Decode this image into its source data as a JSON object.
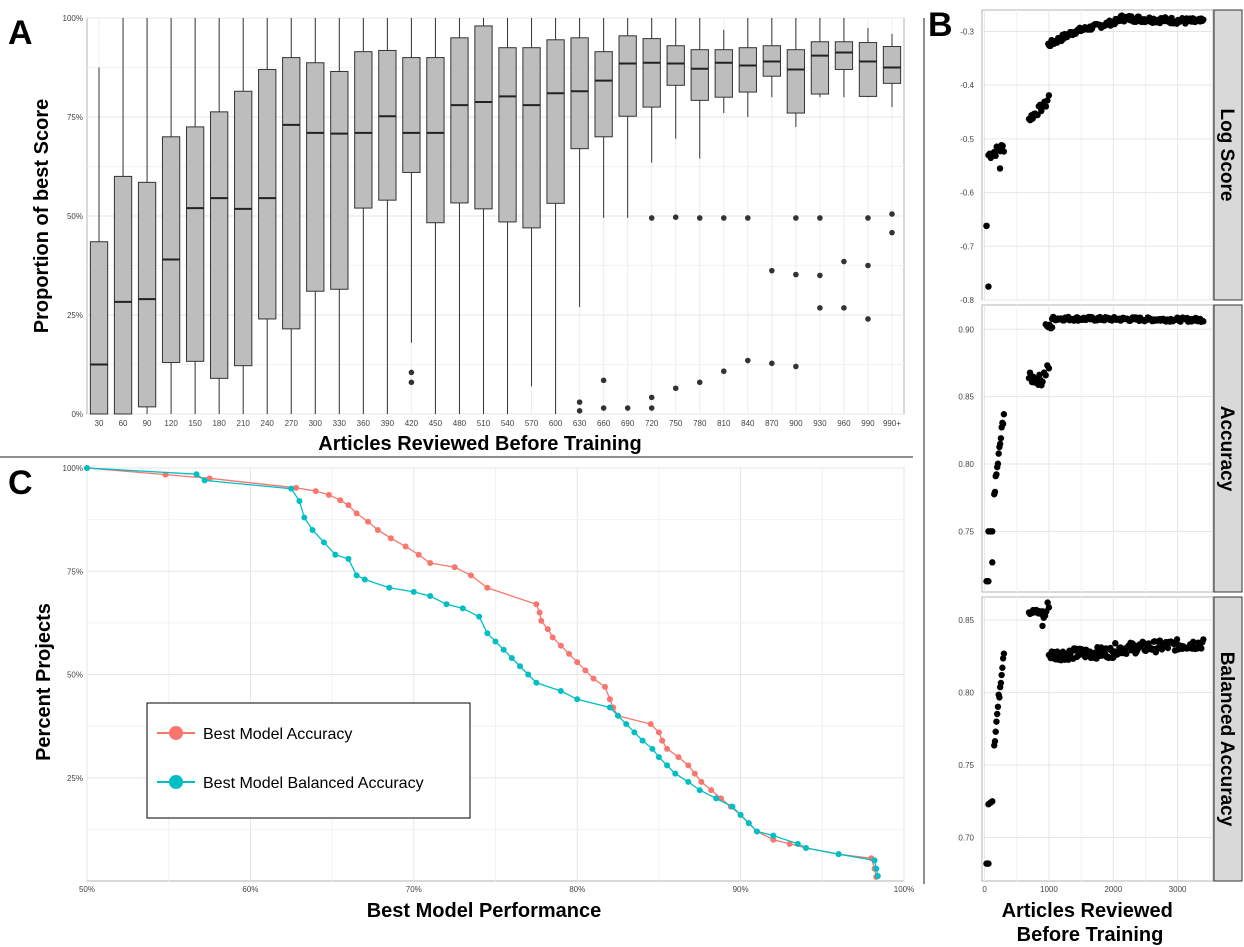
{
  "panel_letters": {
    "a": "A",
    "b": "B",
    "c": "C"
  },
  "chart_data": [
    {
      "id": "A",
      "type": "box",
      "xlabel": "Articles Reviewed Before Training",
      "ylabel": "Proportion of best Score",
      "ylim": [
        0,
        1
      ],
      "yticks": [
        "0%",
        "25%",
        "50%",
        "75%",
        "100%"
      ],
      "grid": true,
      "categories": [
        "30",
        "60",
        "90",
        "120",
        "150",
        "180",
        "210",
        "240",
        "270",
        "300",
        "330",
        "360",
        "390",
        "420",
        "450",
        "480",
        "510",
        "540",
        "570",
        "600",
        "630",
        "660",
        "690",
        "720",
        "750",
        "780",
        "810",
        "840",
        "870",
        "900",
        "930",
        "960",
        "990",
        "990+"
      ],
      "boxes": [
        {
          "min": 0.0,
          "q1": 0.0,
          "median": 0.125,
          "q3": 0.435,
          "max": 0.875
        },
        {
          "min": 0.0,
          "q1": 0.0,
          "median": 0.283,
          "q3": 0.6,
          "max": 1.0
        },
        {
          "min": 0.0,
          "q1": 0.018,
          "median": 0.29,
          "q3": 0.585,
          "max": 1.0
        },
        {
          "min": 0.0,
          "q1": 0.13,
          "median": 0.39,
          "q3": 0.7,
          "max": 1.0
        },
        {
          "min": 0.0,
          "q1": 0.133,
          "median": 0.52,
          "q3": 0.725,
          "max": 1.0
        },
        {
          "min": 0.0,
          "q1": 0.09,
          "median": 0.545,
          "q3": 0.763,
          "max": 1.0
        },
        {
          "min": 0.0,
          "q1": 0.122,
          "median": 0.518,
          "q3": 0.815,
          "max": 1.0
        },
        {
          "min": 0.0,
          "q1": 0.24,
          "median": 0.545,
          "q3": 0.87,
          "max": 1.0
        },
        {
          "min": 0.0,
          "q1": 0.215,
          "median": 0.73,
          "q3": 0.9,
          "max": 1.0
        },
        {
          "min": 0.0,
          "q1": 0.31,
          "median": 0.71,
          "q3": 0.887,
          "max": 1.0
        },
        {
          "min": 0.0,
          "q1": 0.315,
          "median": 0.708,
          "q3": 0.865,
          "max": 1.0
        },
        {
          "min": 0.0,
          "q1": 0.52,
          "median": 0.71,
          "q3": 0.915,
          "max": 1.0
        },
        {
          "min": 0.0,
          "q1": 0.54,
          "median": 0.752,
          "q3": 0.918,
          "max": 1.0
        },
        {
          "min": 0.18,
          "q1": 0.61,
          "median": 0.71,
          "q3": 0.9,
          "max": 1.0,
          "outliers": [
            0.105,
            0.08
          ]
        },
        {
          "min": 0.0,
          "q1": 0.483,
          "median": 0.71,
          "q3": 0.9,
          "max": 1.0
        },
        {
          "min": 0.0,
          "q1": 0.533,
          "median": 0.78,
          "q3": 0.95,
          "max": 1.0
        },
        {
          "min": 0.0,
          "q1": 0.518,
          "median": 0.788,
          "q3": 0.98,
          "max": 1.0
        },
        {
          "min": 0.0,
          "q1": 0.485,
          "median": 0.802,
          "q3": 0.925,
          "max": 1.0
        },
        {
          "min": 0.07,
          "q1": 0.47,
          "median": 0.78,
          "q3": 0.925,
          "max": 1.0
        },
        {
          "min": 0.0,
          "q1": 0.532,
          "median": 0.81,
          "q3": 0.945,
          "max": 1.0
        },
        {
          "min": 0.27,
          "q1": 0.67,
          "median": 0.815,
          "q3": 0.95,
          "max": 1.0,
          "outliers": [
            0.03,
            0.008
          ]
        },
        {
          "min": 0.495,
          "q1": 0.7,
          "median": 0.842,
          "q3": 0.915,
          "max": 1.0,
          "outliers": [
            0.085,
            0.015
          ]
        },
        {
          "min": 0.495,
          "q1": 0.752,
          "median": 0.885,
          "q3": 0.955,
          "max": 1.0,
          "outliers": [
            0.015
          ]
        },
        {
          "min": 0.635,
          "q1": 0.775,
          "median": 0.887,
          "q3": 0.948,
          "max": 1.0,
          "outliers": [
            0.495,
            0.042,
            0.015
          ]
        },
        {
          "min": 0.695,
          "q1": 0.83,
          "median": 0.885,
          "q3": 0.93,
          "max": 1.0,
          "outliers": [
            0.497,
            0.065
          ]
        },
        {
          "min": 0.645,
          "q1": 0.792,
          "median": 0.872,
          "q3": 0.92,
          "max": 1.0,
          "outliers": [
            0.495,
            0.08
          ]
        },
        {
          "min": 0.76,
          "q1": 0.8,
          "median": 0.887,
          "q3": 0.92,
          "max": 0.97,
          "outliers": [
            0.495,
            0.108
          ]
        },
        {
          "min": 0.75,
          "q1": 0.813,
          "median": 0.88,
          "q3": 0.925,
          "max": 1.0,
          "outliers": [
            0.495,
            0.135
          ]
        },
        {
          "min": 0.8,
          "q1": 0.853,
          "median": 0.89,
          "q3": 0.93,
          "max": 1.0,
          "outliers": [
            0.362,
            0.128
          ]
        },
        {
          "min": 0.725,
          "q1": 0.76,
          "median": 0.87,
          "q3": 0.92,
          "max": 1.0,
          "outliers": [
            0.495,
            0.352,
            0.12
          ]
        },
        {
          "min": 0.8,
          "q1": 0.808,
          "median": 0.905,
          "q3": 0.94,
          "max": 1.0,
          "outliers": [
            0.495,
            0.35,
            0.268
          ]
        },
        {
          "min": 0.8,
          "q1": 0.87,
          "median": 0.913,
          "q3": 0.94,
          "max": 1.0,
          "outliers": [
            0.385,
            0.268
          ]
        },
        {
          "min": 0.8,
          "q1": 0.802,
          "median": 0.89,
          "q3": 0.938,
          "max": 0.975,
          "outliers": [
            0.495,
            0.375,
            0.24
          ]
        },
        {
          "min": 0.775,
          "q1": 0.835,
          "median": 0.875,
          "q3": 0.928,
          "max": 0.96,
          "outliers": [
            0.505,
            0.458
          ]
        }
      ]
    },
    {
      "id": "B",
      "type": "scatter",
      "xlabel": "Articles Reviewed Before Training",
      "xlim": [
        -40,
        3550
      ],
      "xticks": [
        0,
        1000,
        2000,
        3000
      ],
      "grid": true,
      "facets": [
        {
          "label": "Log Score",
          "ylim": [
            -0.8,
            -0.26
          ],
          "yticks": [
            -0.8,
            -0.7,
            -0.6,
            -0.5,
            -0.4,
            -0.3
          ],
          "segments": [
            {
              "x0": 30,
              "x1": 30,
              "y0": -0.662,
              "y1": -0.662,
              "n": 3
            },
            {
              "x0": 60,
              "x1": 60,
              "y0": -0.775,
              "y1": -0.775,
              "n": 1
            },
            {
              "x0": 60,
              "x1": 300,
              "y0": -0.53,
              "y1": -0.515,
              "n": 14,
              "noise": 0.01
            },
            {
              "x0": 240,
              "x1": 240,
              "y0": -0.555,
              "y1": -0.555,
              "n": 1
            },
            {
              "x0": 690,
              "x1": 900,
              "y0": -0.463,
              "y1": -0.44,
              "n": 12,
              "noise": 0.008
            },
            {
              "x0": 930,
              "x1": 1000,
              "y0": -0.44,
              "y1": -0.42,
              "n": 4,
              "noise": 0.01
            },
            {
              "x0": 990,
              "x1": 1400,
              "y0": -0.325,
              "y1": -0.3,
              "n": 25,
              "noise": 0.006
            },
            {
              "x0": 1400,
              "x1": 2100,
              "y0": -0.3,
              "y1": -0.28,
              "n": 45,
              "noise": 0.005
            },
            {
              "x0": 2100,
              "x1": 3400,
              "y0": -0.275,
              "y1": -0.282,
              "n": 80,
              "noise": 0.006
            }
          ]
        },
        {
          "label": "Accuracy",
          "ylim": [
            0.705,
            0.918
          ],
          "yticks": [
            0.75,
            0.8,
            0.85,
            0.9
          ],
          "segments": [
            {
              "x0": 30,
              "x1": 60,
              "y0": 0.713,
              "y1": 0.713,
              "n": 3
            },
            {
              "x0": 60,
              "x1": 120,
              "y0": 0.75,
              "y1": 0.75,
              "n": 3
            },
            {
              "x0": 120,
              "x1": 120,
              "y0": 0.727,
              "y1": 0.727,
              "n": 1
            },
            {
              "x0": 150,
              "x1": 300,
              "y0": 0.778,
              "y1": 0.838,
              "n": 14,
              "noise": 0.004
            },
            {
              "x0": 690,
              "x1": 900,
              "y0": 0.864,
              "y1": 0.862,
              "n": 14,
              "noise": 0.004
            },
            {
              "x0": 900,
              "x1": 1000,
              "y0": 0.864,
              "y1": 0.873,
              "n": 5,
              "noise": 0.005
            },
            {
              "x0": 950,
              "x1": 1050,
              "y0": 0.902,
              "y1": 0.902,
              "n": 6,
              "noise": 0.002
            },
            {
              "x0": 1050,
              "x1": 3400,
              "y0": 0.908,
              "y1": 0.907,
              "n": 140,
              "noise": 0.0015
            }
          ]
        },
        {
          "label": "Balanced Accuracy",
          "ylim": [
            0.67,
            0.866
          ],
          "yticks": [
            0.7,
            0.75,
            0.8,
            0.85
          ],
          "segments": [
            {
              "x0": 30,
              "x1": 60,
              "y0": 0.682,
              "y1": 0.682,
              "n": 3
            },
            {
              "x0": 60,
              "x1": 120,
              "y0": 0.723,
              "y1": 0.725,
              "n": 4
            },
            {
              "x0": 150,
              "x1": 300,
              "y0": 0.765,
              "y1": 0.83,
              "n": 14,
              "noise": 0.004
            },
            {
              "x0": 690,
              "x1": 900,
              "y0": 0.856,
              "y1": 0.855,
              "n": 14,
              "noise": 0.002
            },
            {
              "x0": 900,
              "x1": 1000,
              "y0": 0.848,
              "y1": 0.862,
              "n": 6,
              "noise": 0.004
            },
            {
              "x0": 1000,
              "x1": 2000,
              "y0": 0.826,
              "y1": 0.828,
              "n": 70,
              "noise": 0.004
            },
            {
              "x0": 2000,
              "x1": 3400,
              "y0": 0.83,
              "y1": 0.834,
              "n": 90,
              "noise": 0.004
            }
          ]
        }
      ]
    },
    {
      "id": "C",
      "type": "line",
      "xlabel": "Best Model Performance",
      "ylabel": "Percent Projects",
      "xlim": [
        0.5,
        1.0
      ],
      "ylim": [
        0.0,
        1.0
      ],
      "xticks": [
        "50%",
        "60%",
        "70%",
        "80%",
        "90%",
        "100%"
      ],
      "yticks": [
        "25%",
        "50%",
        "75%",
        "100%"
      ],
      "legend": "bottom-left (inside)",
      "grid": true,
      "series": [
        {
          "name": "Best Model Accuracy",
          "color": "#f8766d",
          "points": [
            [
              0.5,
              1.0
            ],
            [
              0.548,
              0.984
            ],
            [
              0.575,
              0.975
            ],
            [
              0.628,
              0.952
            ],
            [
              0.64,
              0.944
            ],
            [
              0.648,
              0.935
            ],
            [
              0.655,
              0.922
            ],
            [
              0.66,
              0.91
            ],
            [
              0.665,
              0.89
            ],
            [
              0.672,
              0.87
            ],
            [
              0.678,
              0.85
            ],
            [
              0.686,
              0.83
            ],
            [
              0.695,
              0.81
            ],
            [
              0.703,
              0.79
            ],
            [
              0.71,
              0.77
            ],
            [
              0.725,
              0.76
            ],
            [
              0.735,
              0.74
            ],
            [
              0.745,
              0.71
            ],
            [
              0.775,
              0.67
            ],
            [
              0.777,
              0.65
            ],
            [
              0.778,
              0.63
            ],
            [
              0.782,
              0.61
            ],
            [
              0.785,
              0.59
            ],
            [
              0.79,
              0.57
            ],
            [
              0.795,
              0.55
            ],
            [
              0.8,
              0.53
            ],
            [
              0.805,
              0.51
            ],
            [
              0.81,
              0.49
            ],
            [
              0.817,
              0.47
            ],
            [
              0.82,
              0.44
            ],
            [
              0.822,
              0.42
            ],
            [
              0.825,
              0.4
            ],
            [
              0.845,
              0.38
            ],
            [
              0.85,
              0.36
            ],
            [
              0.852,
              0.34
            ],
            [
              0.855,
              0.32
            ],
            [
              0.862,
              0.3
            ],
            [
              0.868,
              0.28
            ],
            [
              0.872,
              0.26
            ],
            [
              0.876,
              0.24
            ],
            [
              0.882,
              0.22
            ],
            [
              0.888,
              0.2
            ],
            [
              0.894,
              0.18
            ],
            [
              0.9,
              0.16
            ],
            [
              0.905,
              0.14
            ],
            [
              0.91,
              0.12
            ],
            [
              0.92,
              0.1
            ],
            [
              0.93,
              0.09
            ],
            [
              0.94,
              0.08
            ],
            [
              0.96,
              0.065
            ],
            [
              0.98,
              0.055
            ],
            [
              0.982,
              0.03
            ],
            [
              0.983,
              0.01
            ]
          ]
        },
        {
          "name": "Best Model Balanced Accuracy",
          "color": "#00bfc4",
          "points": [
            [
              0.5,
              1.0
            ],
            [
              0.567,
              0.985
            ],
            [
              0.572,
              0.97
            ],
            [
              0.625,
              0.95
            ],
            [
              0.63,
              0.92
            ],
            [
              0.633,
              0.88
            ],
            [
              0.638,
              0.85
            ],
            [
              0.645,
              0.82
            ],
            [
              0.652,
              0.79
            ],
            [
              0.66,
              0.78
            ],
            [
              0.665,
              0.74
            ],
            [
              0.67,
              0.73
            ],
            [
              0.685,
              0.71
            ],
            [
              0.7,
              0.7
            ],
            [
              0.71,
              0.69
            ],
            [
              0.72,
              0.67
            ],
            [
              0.73,
              0.66
            ],
            [
              0.74,
              0.64
            ],
            [
              0.745,
              0.6
            ],
            [
              0.75,
              0.58
            ],
            [
              0.755,
              0.56
            ],
            [
              0.76,
              0.54
            ],
            [
              0.765,
              0.52
            ],
            [
              0.77,
              0.5
            ],
            [
              0.775,
              0.48
            ],
            [
              0.79,
              0.46
            ],
            [
              0.8,
              0.44
            ],
            [
              0.82,
              0.42
            ],
            [
              0.825,
              0.4
            ],
            [
              0.83,
              0.38
            ],
            [
              0.835,
              0.36
            ],
            [
              0.84,
              0.34
            ],
            [
              0.846,
              0.32
            ],
            [
              0.85,
              0.3
            ],
            [
              0.855,
              0.28
            ],
            [
              0.86,
              0.26
            ],
            [
              0.868,
              0.24
            ],
            [
              0.875,
              0.22
            ],
            [
              0.885,
              0.2
            ],
            [
              0.895,
              0.18
            ],
            [
              0.9,
              0.16
            ],
            [
              0.905,
              0.14
            ],
            [
              0.91,
              0.12
            ],
            [
              0.92,
              0.11
            ],
            [
              0.935,
              0.09
            ],
            [
              0.94,
              0.08
            ],
            [
              0.96,
              0.065
            ],
            [
              0.982,
              0.05
            ],
            [
              0.983,
              0.03
            ],
            [
              0.984,
              0.012
            ]
          ]
        }
      ]
    }
  ]
}
